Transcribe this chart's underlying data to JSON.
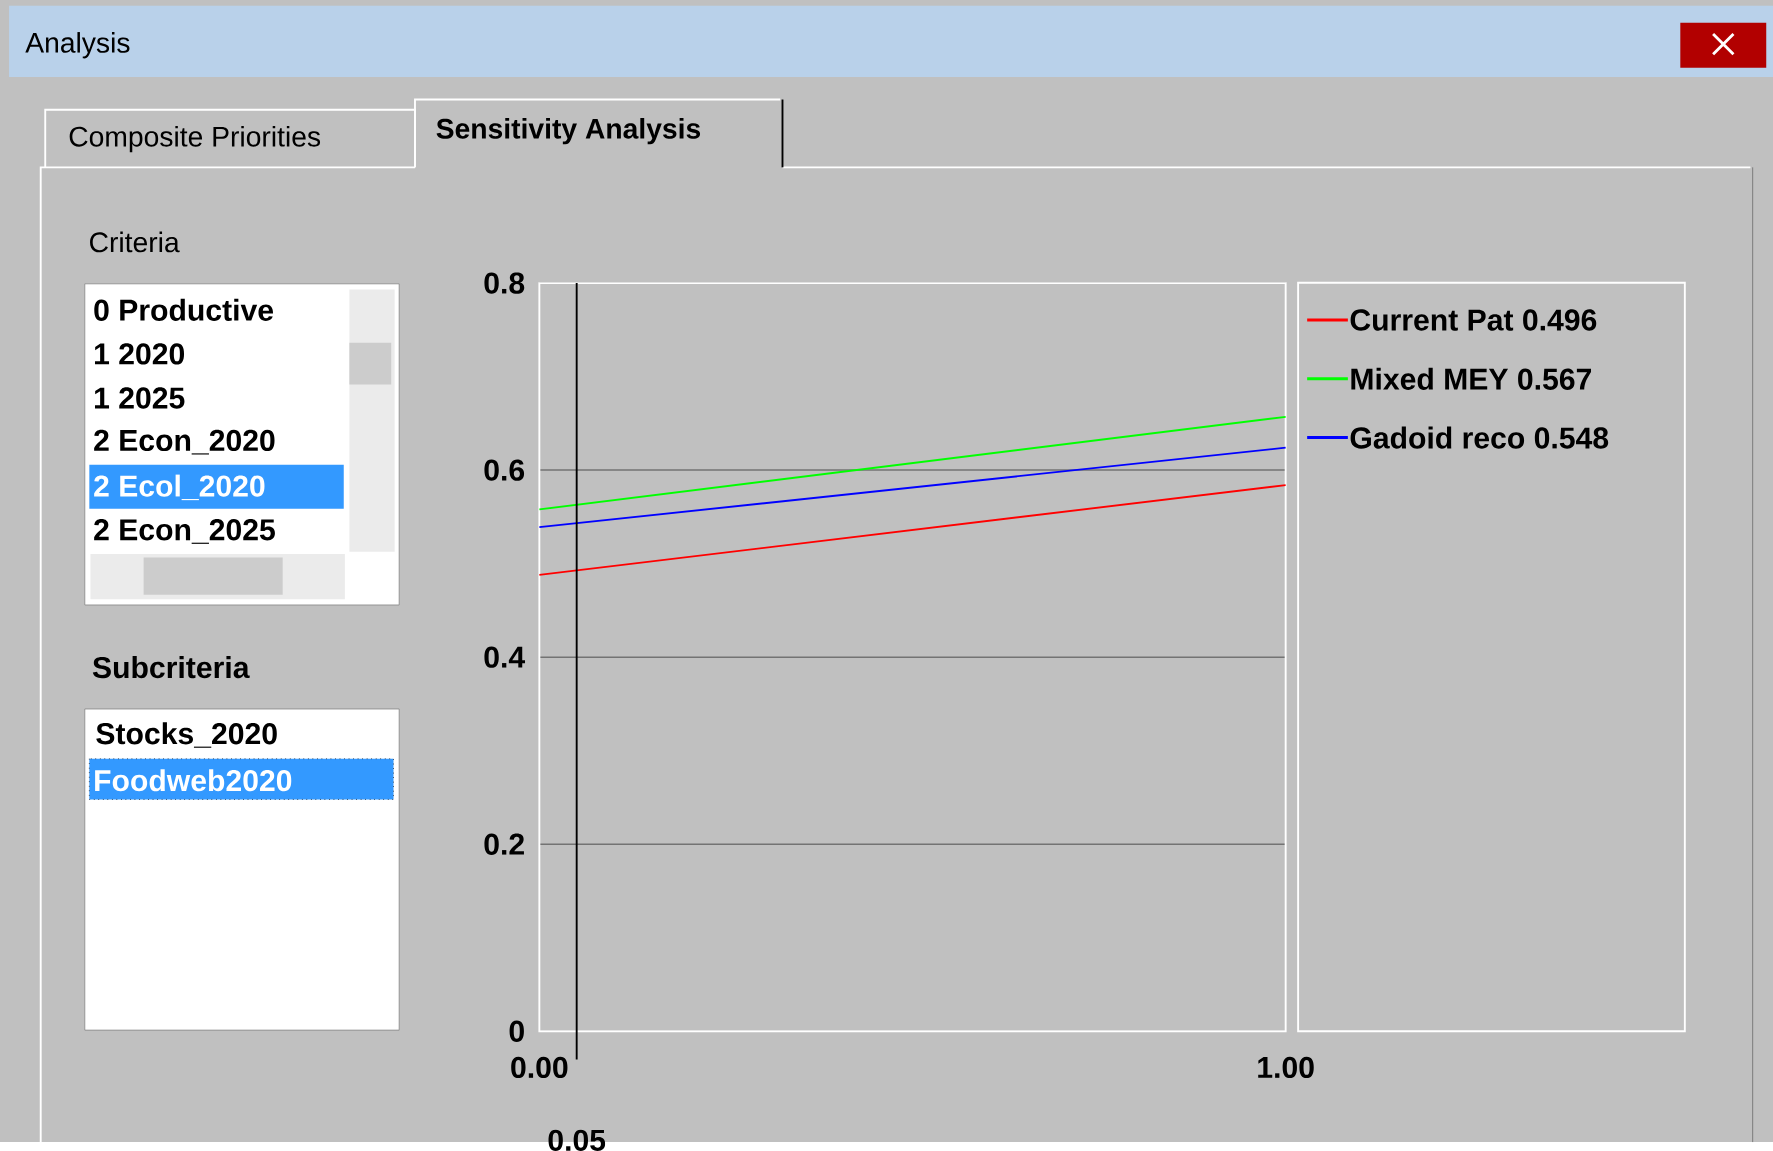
{
  "chart_data": {
    "type": "line",
    "x": [
      0,
      1
    ],
    "series": [
      {
        "name": "Current Pat 0.496",
        "color": "#ff0000",
        "values": [
          0.488,
          0.584
        ]
      },
      {
        "name": "Mixed MEY 0.567",
        "color": "#00ff00",
        "values": [
          0.558,
          0.657
        ]
      },
      {
        "name": "Gadoid reco 0.548",
        "color": "#0000ff",
        "values": [
          0.539,
          0.624
        ]
      }
    ],
    "xlim": [
      0,
      1
    ],
    "ylim": [
      0,
      0.8
    ],
    "xticks": [
      {
        "value": 0,
        "label": "0.00"
      },
      {
        "value": 1,
        "label": "1.00"
      }
    ],
    "yticks": [
      0,
      0.2,
      0.4,
      0.6,
      0.8
    ],
    "grid": "y",
    "legend": "right",
    "marker": "none",
    "line_style": "solid",
    "ref_lines": [
      {
        "axis": "x",
        "value": 0.05,
        "label": "0.05",
        "color": "#000000"
      }
    ],
    "annotations": [
      "Analysis",
      "Composite Priorities",
      "Sensitivity Analysis",
      "Criteria",
      "0 Productive",
      "1 2020",
      "1 2025",
      "2 Econ_2020",
      "2 Ecol_2020",
      "2 Econ_2025",
      "Subcriteria",
      "Stocks_2020",
      "Foodweb2020"
    ]
  }
}
